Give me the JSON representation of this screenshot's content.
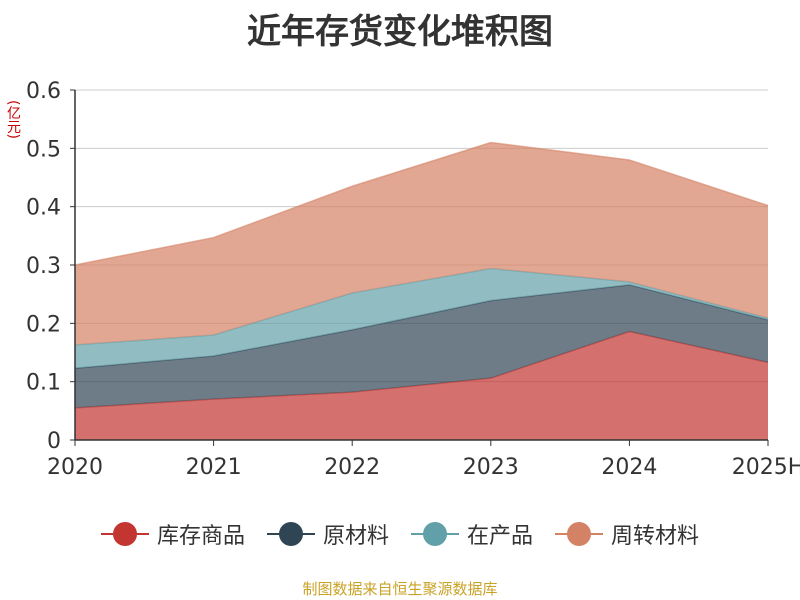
{
  "title": "近年存货变化堆积图",
  "unit": "(亿元)",
  "source": "制图数据来自恒生聚源数据库",
  "chart_data": {
    "type": "area",
    "stacked": true,
    "title": "近年存货变化堆积图",
    "ylabel": "(亿元)",
    "categories": [
      "2020",
      "2021",
      "2022",
      "2023",
      "2024",
      "2025H"
    ],
    "ylim": [
      0,
      0.6
    ],
    "yticks": [
      "0",
      "0.1",
      "0.2",
      "0.3",
      "0.4",
      "0.5",
      "0.6"
    ],
    "grid": true,
    "legend_position": "bottom",
    "series": [
      {
        "name": "库存商品",
        "color": "#c23531",
        "values": [
          0.055,
          0.07,
          0.082,
          0.106,
          0.186,
          0.133
        ]
      },
      {
        "name": "原材料",
        "color": "#2f4554",
        "values": [
          0.068,
          0.074,
          0.107,
          0.133,
          0.08,
          0.073
        ]
      },
      {
        "name": "在产品",
        "color": "#61a0a8",
        "values": [
          0.04,
          0.036,
          0.063,
          0.055,
          0.005,
          0.003
        ]
      },
      {
        "name": "周转材料",
        "color": "#d48265",
        "values": [
          0.137,
          0.167,
          0.183,
          0.216,
          0.209,
          0.193
        ]
      }
    ]
  }
}
